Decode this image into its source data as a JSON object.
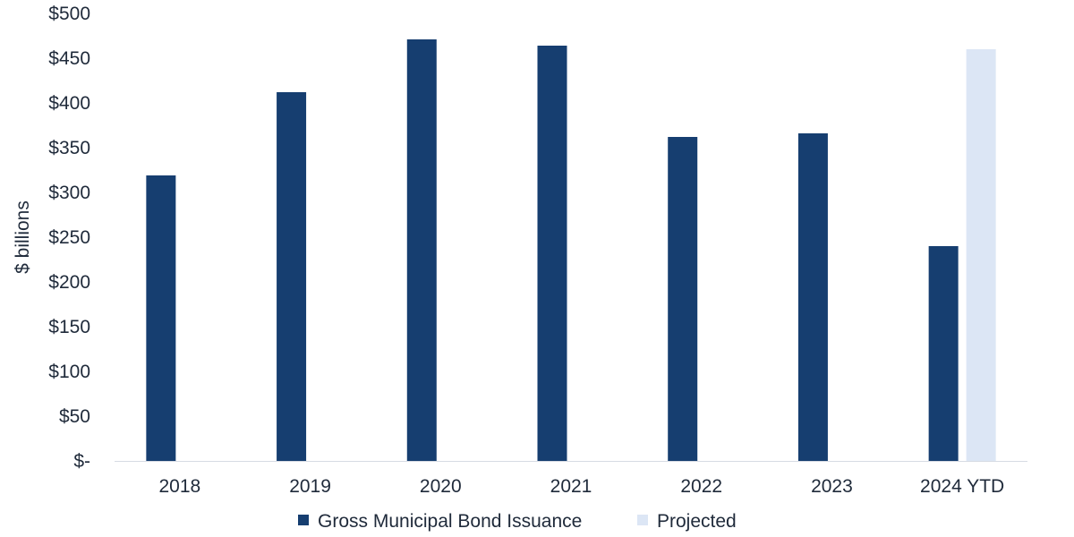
{
  "chart_data": {
    "type": "bar",
    "ylabel": "$ billions",
    "ylim": [
      0,
      500
    ],
    "y_tick_step": 50,
    "y_tick_labels": [
      "$-",
      "$50",
      "$100",
      "$150",
      "$200",
      "$250",
      "$300",
      "$350",
      "$400",
      "$450",
      "$500"
    ],
    "categories": [
      "2018",
      "2019",
      "2020",
      "2021",
      "2022",
      "2023",
      "2024 YTD"
    ],
    "series": [
      {
        "name": "Gross Municipal Bond Issuance",
        "color": "#163e70",
        "values": [
          319,
          412,
          471,
          464,
          362,
          366,
          240
        ]
      },
      {
        "name": "Projected",
        "color": "#dce6f5",
        "values": [
          null,
          null,
          null,
          null,
          null,
          null,
          460
        ]
      }
    ],
    "grid": false,
    "legend_position": "bottom"
  }
}
